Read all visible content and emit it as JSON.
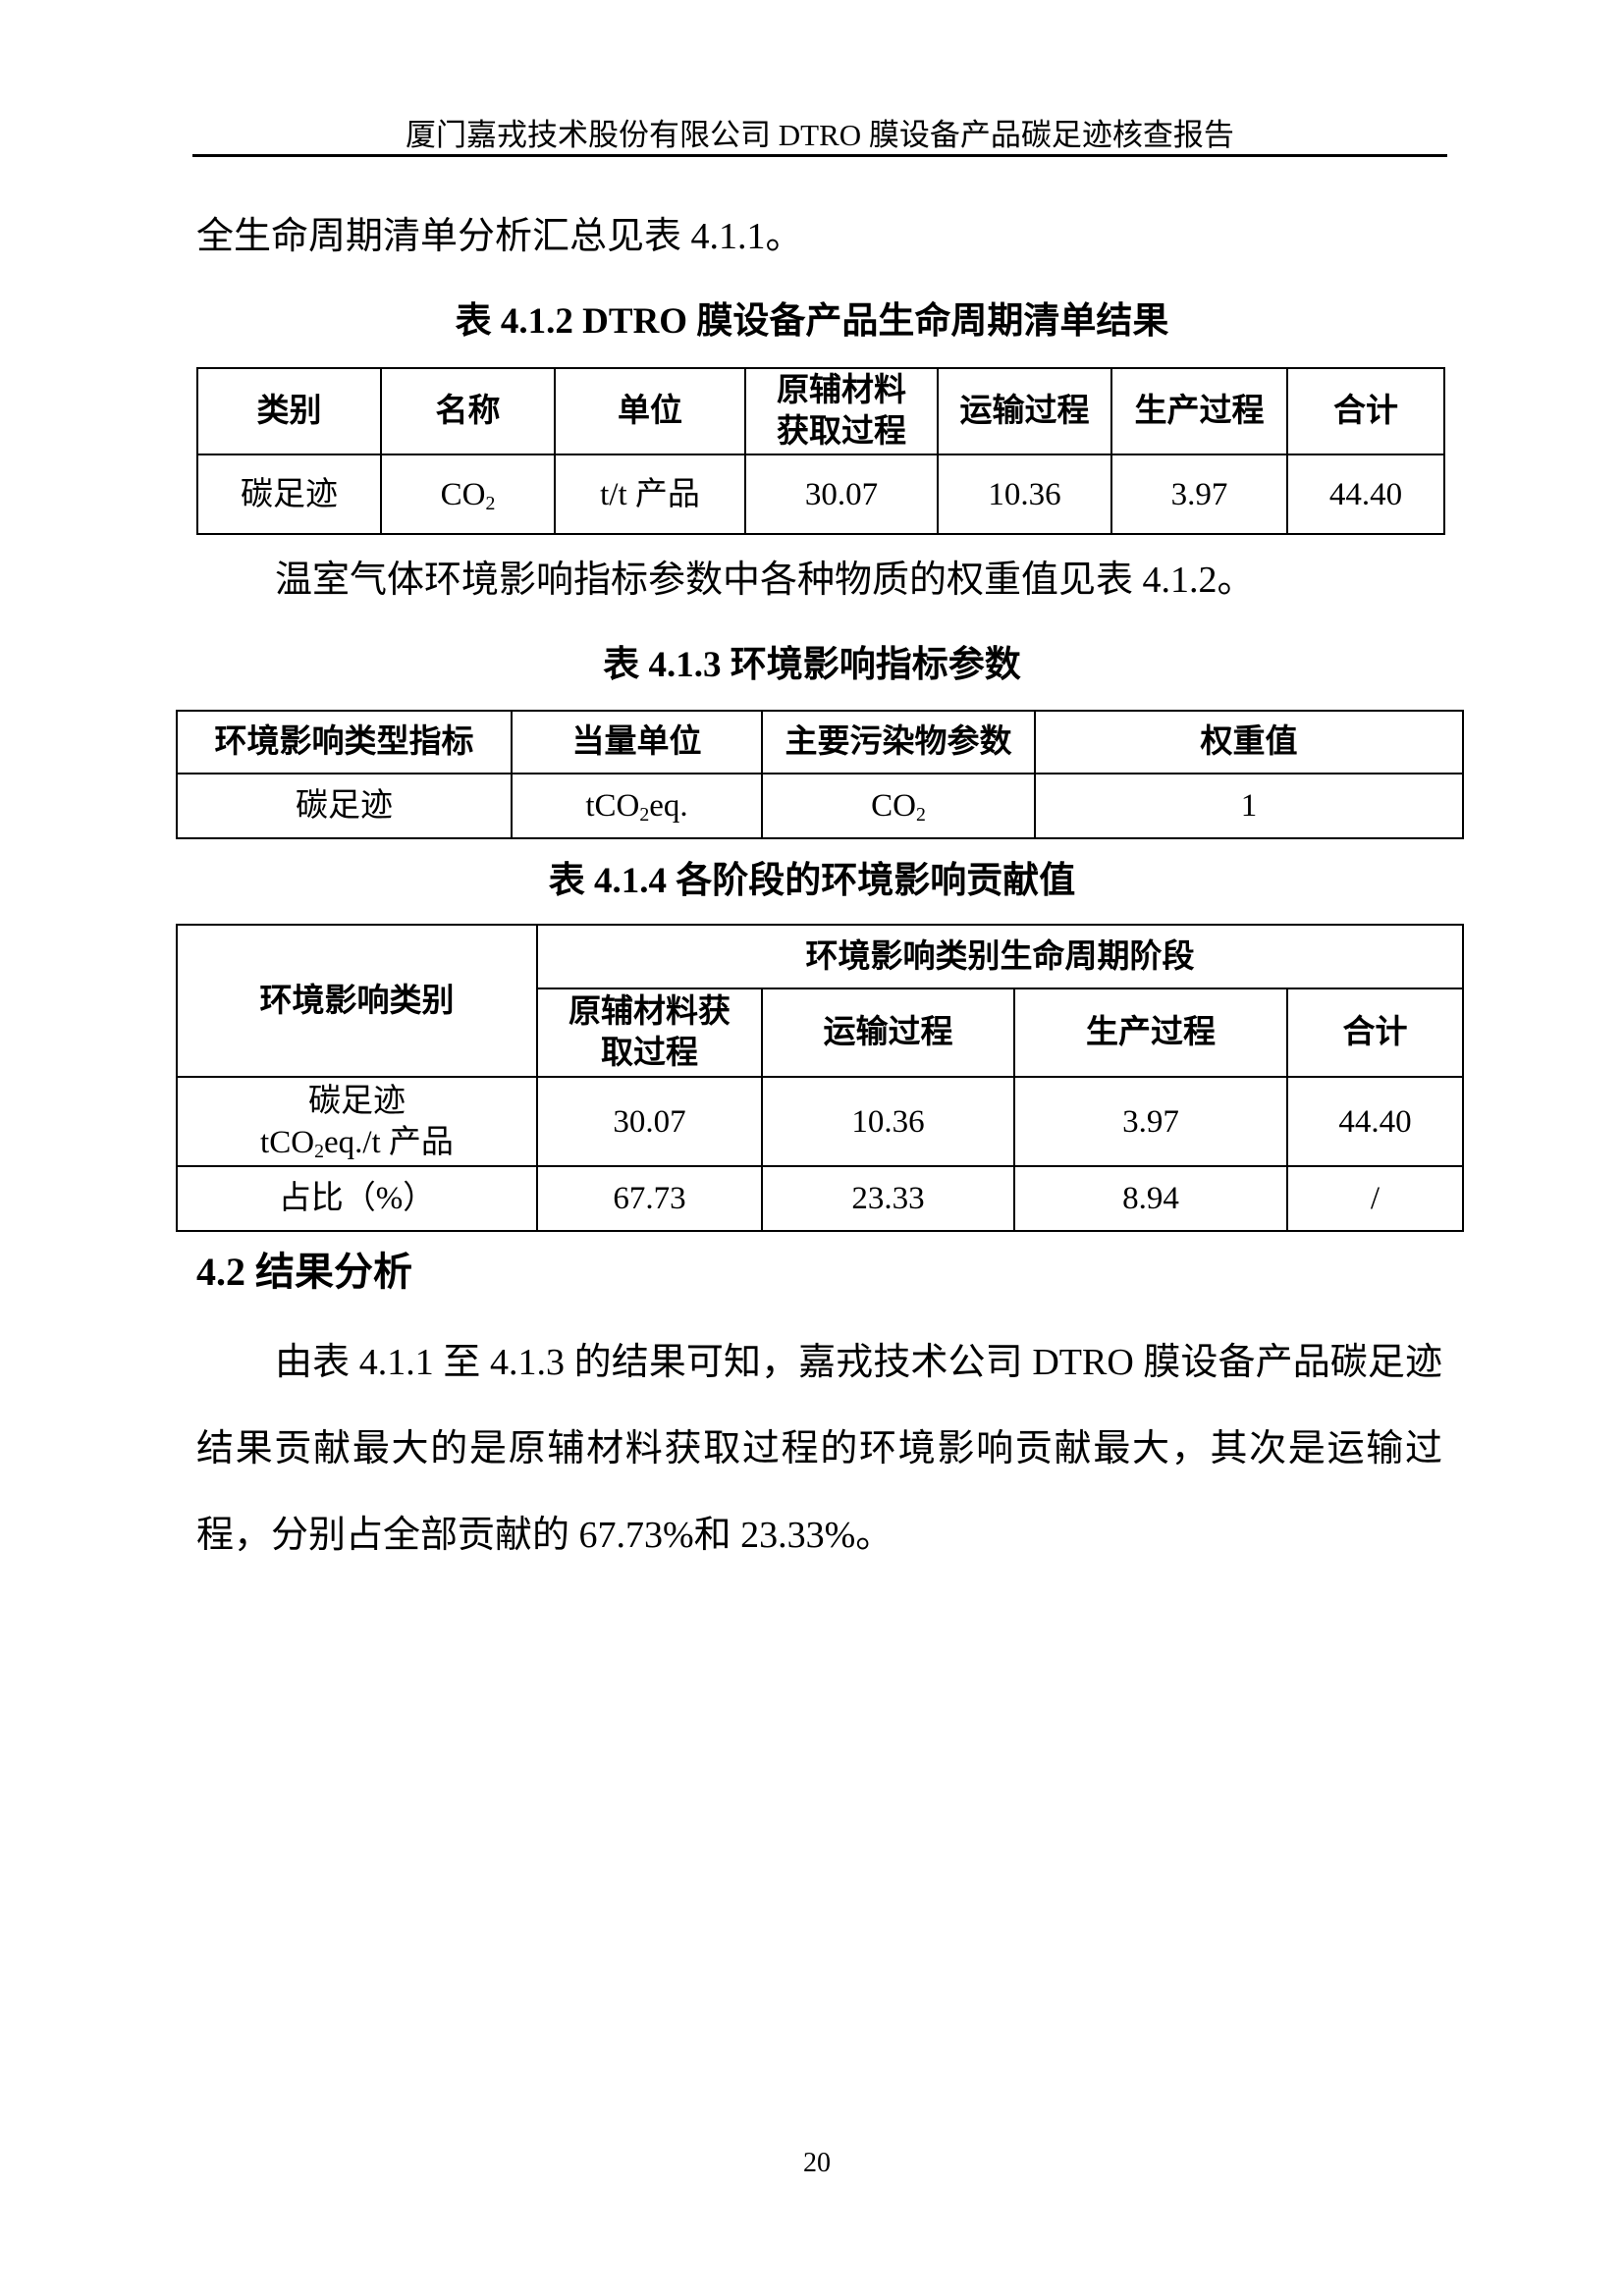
{
  "header": {
    "title": "厦门嘉戎技术股份有限公司 DTRO 膜设备产品碳足迹核查报告"
  },
  "intro_text": "全生命周期清单分析汇总见表 4.1.1。",
  "table_412": {
    "caption": "表 4.1.2   DTRO 膜设备产品生命周期清单结果",
    "headers": [
      "类别",
      "名称",
      "单位",
      "原辅材料获取过程",
      "运输过程",
      "生产过程",
      "合计"
    ],
    "row": {
      "category": "碳足迹",
      "name_base": "CO",
      "name_sub": "2",
      "unit": "t/t 产品",
      "raw": "30.07",
      "transport": "10.36",
      "production": "3.97",
      "total": "44.40"
    }
  },
  "weight_text": "温室气体环境影响指标参数中各种物质的权重值见表 4.1.2。",
  "table_413": {
    "caption": "表 4.1.3 环境影响指标参数",
    "headers": [
      "环境影响类型指标",
      "当量单位",
      "主要污染物参数",
      "权重值"
    ],
    "row": {
      "indicator": "碳足迹",
      "unit_a": "tCO",
      "unit_sub": "2",
      "unit_b": "eq.",
      "pollutant_base": "CO",
      "pollutant_sub": "2",
      "weight": "1"
    }
  },
  "table_414": {
    "caption": "表 4.1.4 各阶段的环境影响贡献值",
    "row_header": "环境影响类别",
    "group_header": "环境影响类别生命周期阶段",
    "headers": [
      "原辅材料获取过程",
      "运输过程",
      "生产过程",
      "合计"
    ],
    "row1": {
      "label_line1": "碳足迹",
      "label_a": "tCO",
      "label_sub": "2",
      "label_b": "eq./t 产品",
      "values": [
        "30.07",
        "10.36",
        "3.97",
        "44.40"
      ]
    },
    "row2": {
      "label": "占比（%）",
      "values": [
        "67.73",
        "23.33",
        "8.94",
        "/"
      ]
    }
  },
  "section_42": {
    "heading": "4.2 结果分析",
    "paragraph": "由表 4.1.1 至 4.1.3 的结果可知，嘉戎技术公司 DTRO 膜设备产品碳足迹结果贡献最大的是原辅材料获取过程的环境影响贡献最大，其次是运输过程，分别占全部贡献的 67.73%和 23.33%。"
  },
  "page_number": "20"
}
